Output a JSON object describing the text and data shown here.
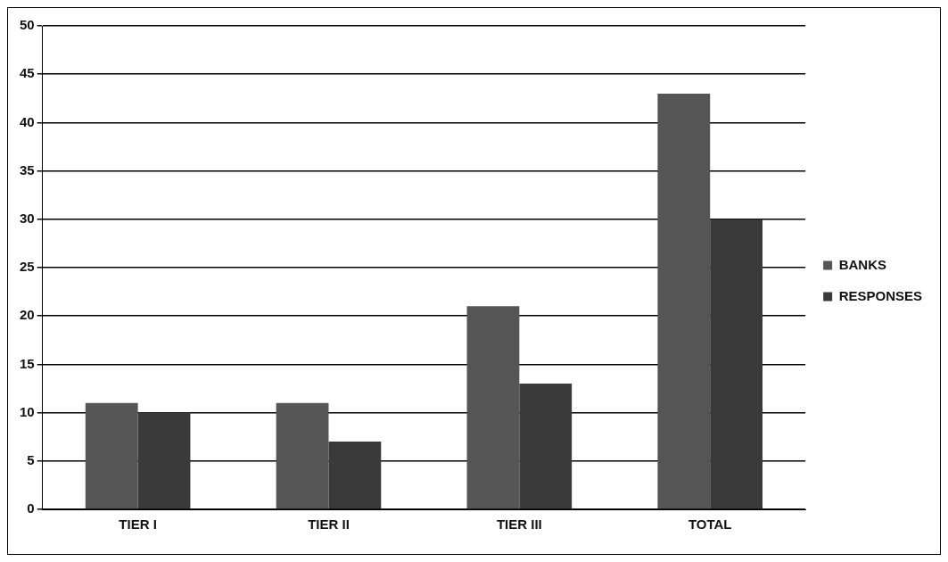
{
  "chart_data": {
    "type": "bar",
    "categories": [
      "TIER I",
      "TIER II",
      "TIER III",
      "TOTAL"
    ],
    "series": [
      {
        "name": "BANKS",
        "color": "#555555",
        "values": [
          11,
          11,
          21,
          43
        ]
      },
      {
        "name": "RESPONSES",
        "color": "#3a3a3a",
        "values": [
          10,
          7,
          13,
          30
        ]
      }
    ],
    "ylim": [
      0,
      50
    ],
    "yticks": [
      0,
      5,
      10,
      15,
      20,
      25,
      30,
      35,
      40,
      45,
      50
    ],
    "grid": "y",
    "legend": "right"
  }
}
